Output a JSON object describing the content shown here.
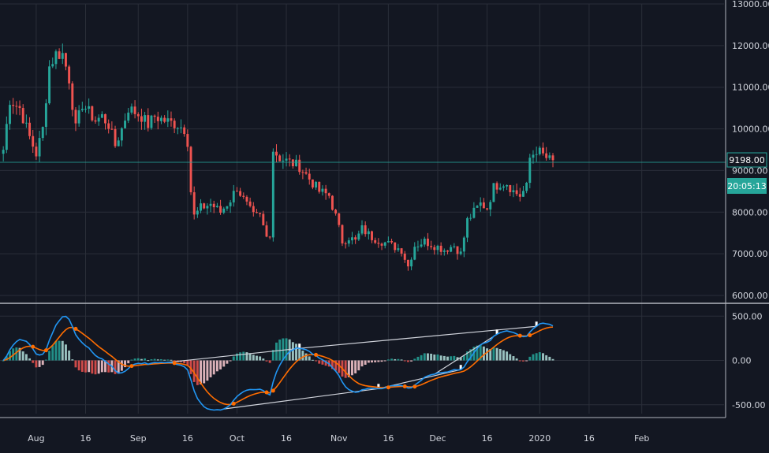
{
  "chart_data": [
    {
      "type": "candlestick",
      "title": "",
      "ylim": [
        6000,
        13000
      ],
      "y_ticks": [
        "13000.00",
        "12000.00",
        "11000.00",
        "10000.00",
        "9000.00",
        "8000.00",
        "7000.00",
        "6000.00"
      ],
      "y_tick_values": [
        13000,
        12000,
        11000,
        10000,
        9000,
        8000,
        7000,
        6000
      ],
      "x_ticks": [
        "Aug",
        "16",
        "Sep",
        "16",
        "Oct",
        "16",
        "Nov",
        "16",
        "Dec",
        "16",
        "2020",
        "16",
        "Feb"
      ],
      "x_tick_days": [
        31,
        46,
        62,
        77,
        92,
        107,
        123,
        138,
        153,
        168,
        184,
        199,
        215
      ],
      "day_range": [
        20,
        240
      ],
      "price_badge": "9198.00",
      "countdown_badge": "20:05:13",
      "last_price": 9198,
      "up_color": "#26a69a",
      "down_color": "#ef5350",
      "key_closes": [
        [
          21,
          9500
        ],
        [
          23,
          10700
        ],
        [
          26,
          10500
        ],
        [
          29,
          9800
        ],
        [
          31,
          9400
        ],
        [
          33,
          10000
        ],
        [
          35,
          11500
        ],
        [
          37,
          11800
        ],
        [
          39,
          11800
        ],
        [
          41,
          11200
        ],
        [
          43,
          10000
        ],
        [
          45,
          10600
        ],
        [
          47,
          10400
        ],
        [
          49,
          10200
        ],
        [
          51,
          10300
        ],
        [
          53,
          10100
        ],
        [
          55,
          9600
        ],
        [
          57,
          10000
        ],
        [
          59,
          10500
        ],
        [
          61,
          10400
        ],
        [
          63,
          10300
        ],
        [
          65,
          10100
        ],
        [
          67,
          10300
        ],
        [
          70,
          10200
        ],
        [
          74,
          10100
        ],
        [
          76,
          10000
        ],
        [
          77,
          9700
        ],
        [
          78,
          8500
        ],
        [
          79,
          7900
        ],
        [
          81,
          8100
        ],
        [
          84,
          8200
        ],
        [
          87,
          8000
        ],
        [
          90,
          8300
        ],
        [
          92,
          8600
        ],
        [
          94,
          8300
        ],
        [
          97,
          7900
        ],
        [
          99,
          7900
        ],
        [
          101,
          7400
        ],
        [
          102,
          7500
        ],
        [
          103,
          9500
        ],
        [
          105,
          9300
        ],
        [
          108,
          9200
        ],
        [
          111,
          9100
        ],
        [
          114,
          8800
        ],
        [
          117,
          8500
        ],
        [
          120,
          8400
        ],
        [
          122,
          7900
        ],
        [
          124,
          7300
        ],
        [
          126,
          7400
        ],
        [
          128,
          7300
        ],
        [
          130,
          7600
        ],
        [
          133,
          7400
        ],
        [
          136,
          7300
        ],
        [
          139,
          7200
        ],
        [
          142,
          7100
        ],
        [
          144,
          6700
        ],
        [
          146,
          7200
        ],
        [
          149,
          7300
        ],
        [
          152,
          7200
        ],
        [
          155,
          7100
        ],
        [
          158,
          7200
        ],
        [
          160,
          7000
        ],
        [
          162,
          7800
        ],
        [
          164,
          8000
        ],
        [
          166,
          8200
        ],
        [
          168,
          8100
        ],
        [
          170,
          8600
        ],
        [
          172,
          8700
        ],
        [
          174,
          8700
        ],
        [
          176,
          8500
        ],
        [
          178,
          8400
        ],
        [
          180,
          8600
        ],
        [
          181,
          9300
        ],
        [
          183,
          9500
        ],
        [
          186,
          9300
        ],
        [
          188,
          9200
        ]
      ]
    },
    {
      "type": "macd",
      "title": "",
      "ylim": [
        -600,
        600
      ],
      "y_ticks": [
        "500.00",
        "0.00",
        "-500.00"
      ],
      "y_tick_values": [
        500,
        0,
        -500
      ],
      "macd_color": "#2196f3",
      "signal_color": "#ff6d00",
      "hist_up_color": "#26a69a",
      "hist_down_color": "#ef5350",
      "divergence_line_color": "#d1d4dc"
    }
  ]
}
